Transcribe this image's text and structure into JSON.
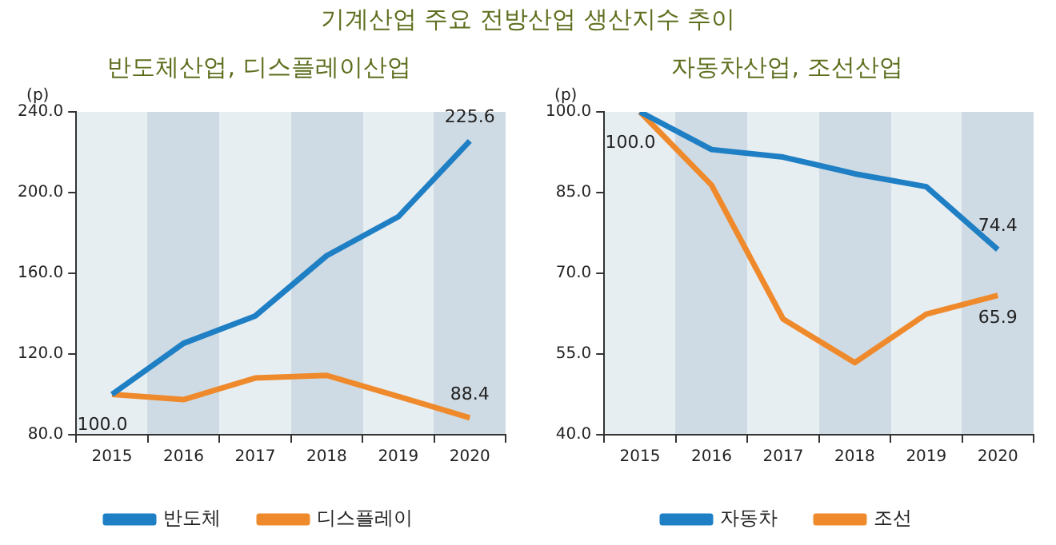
{
  "chart_data": [
    {
      "type": "line",
      "title": "반도체산업, 디스플레이산업",
      "annotations": [
        "기계산업 주요 전방산업 생산지수 추이"
      ],
      "ylabel": "(p)",
      "categories": [
        "2015",
        "2016",
        "2017",
        "2018",
        "2019",
        "2020"
      ],
      "series": [
        {
          "name": "반도체",
          "color": "#1f7fc4",
          "values": [
            100.0,
            125.3,
            138.8,
            168.7,
            188.0,
            225.6
          ],
          "value_labels": [
            "100.0",
            null,
            null,
            null,
            null,
            "225.6"
          ]
        },
        {
          "name": "디스플레이",
          "color": "#ef8a2c",
          "values": [
            100.0,
            97.4,
            108.1,
            109.4,
            99.0,
            88.4
          ],
          "value_labels": [
            null,
            null,
            null,
            null,
            null,
            "88.4"
          ]
        }
      ],
      "ylim": [
        80,
        240
      ],
      "yticks": [
        {
          "value": 80,
          "label": "80.0"
        },
        {
          "value": 120,
          "label": "120.0"
        },
        {
          "value": 160,
          "label": "160.0"
        },
        {
          "value": 200,
          "label": "200.0"
        },
        {
          "value": 240,
          "label": "240.0"
        }
      ],
      "grid": false,
      "legend": "bottom",
      "marker": "none"
    },
    {
      "type": "line",
      "title": "자동차산업, 조선산업",
      "ylabel": "(p)",
      "categories": [
        "2015",
        "2016",
        "2017",
        "2018",
        "2019",
        "2020"
      ],
      "series": [
        {
          "name": "자동차",
          "color": "#1f7fc4",
          "values": [
            100.0,
            93.0,
            91.6,
            88.5,
            86.1,
            74.4
          ],
          "value_labels": [
            "100.0",
            null,
            null,
            null,
            null,
            "74.4"
          ]
        },
        {
          "name": "조선",
          "color": "#ef8a2c",
          "values": [
            100.0,
            86.4,
            61.5,
            53.4,
            62.4,
            65.9
          ],
          "value_labels": [
            null,
            null,
            null,
            null,
            null,
            "65.9"
          ]
        }
      ],
      "ylim": [
        40,
        100
      ],
      "yticks": [
        {
          "value": 40,
          "label": "40.0"
        },
        {
          "value": 55,
          "label": "55.0"
        },
        {
          "value": 70,
          "label": "70.0"
        },
        {
          "value": 85,
          "label": "85.0"
        },
        {
          "value": 100,
          "label": "100.0"
        }
      ],
      "grid": false,
      "legend": "bottom",
      "marker": "none"
    }
  ]
}
